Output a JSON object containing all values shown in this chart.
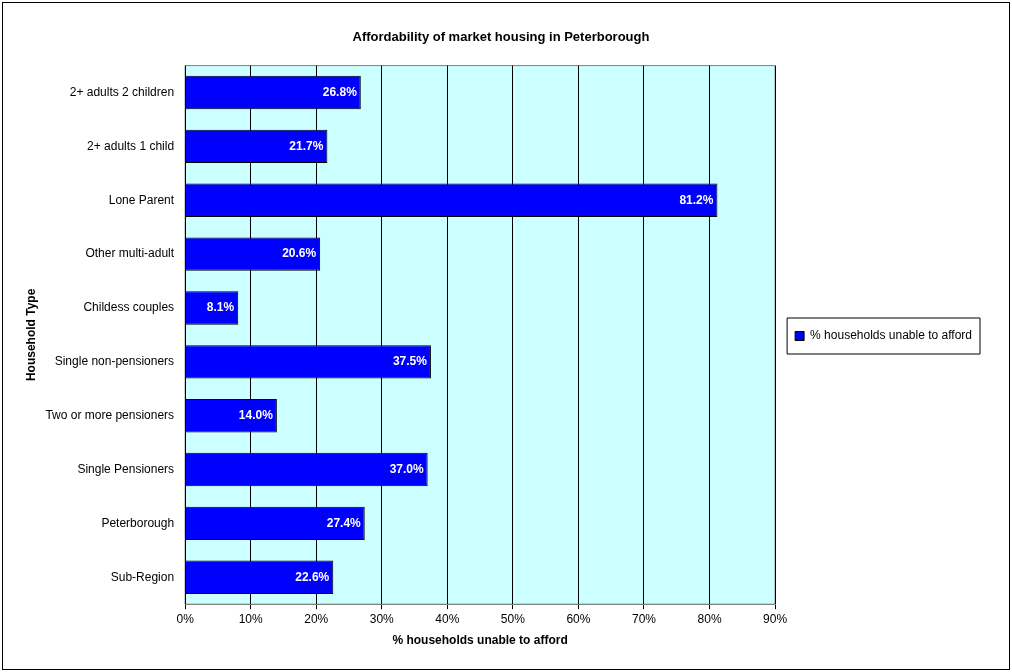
{
  "chart_data": {
    "type": "bar",
    "orientation": "horizontal",
    "title": "Affordability of market housing in Peterborough",
    "xlabel": "% households unable to afford",
    "ylabel": "Household Type",
    "categories": [
      "2+ adults 2 children",
      "2+ adults 1 child",
      "Lone Parent",
      "Other multi-adult",
      "Childess couples",
      "Single non-pensioners",
      "Two or more pensioners",
      "Single Pensioners",
      "Peterborough",
      "Sub-Region"
    ],
    "series": [
      {
        "name": "% households unable to afford",
        "color": "#0000ff",
        "values": [
          26.8,
          21.7,
          81.2,
          20.6,
          8.1,
          37.5,
          14.0,
          37.0,
          27.4,
          22.6
        ],
        "value_labels": [
          "26.8%",
          "21.7%",
          "81.2%",
          "20.6%",
          "8.1%",
          "37.5%",
          "14.0%",
          "37.0%",
          "27.4%",
          "22.6%"
        ]
      }
    ],
    "xlim": [
      0,
      90
    ],
    "xticks": [
      {
        "value": 0,
        "label": "0%"
      },
      {
        "value": 10,
        "label": "10%"
      },
      {
        "value": 20,
        "label": "20%"
      },
      {
        "value": 30,
        "label": "30%"
      },
      {
        "value": 40,
        "label": "40%"
      },
      {
        "value": 50,
        "label": "50%"
      },
      {
        "value": 60,
        "label": "60%"
      },
      {
        "value": 70,
        "label": "70%"
      },
      {
        "value": 80,
        "label": "80%"
      },
      {
        "value": 90,
        "label": "90%"
      }
    ],
    "grid": "x",
    "legend": "right"
  }
}
